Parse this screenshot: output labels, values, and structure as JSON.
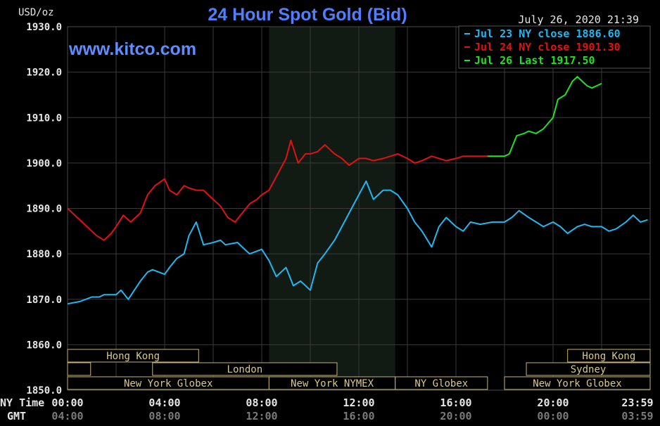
{
  "title": "24 Hour Spot Gold (Bid)",
  "watermark": "www.kitco.com",
  "datetime": "July 26, 2020 21:39",
  "units": "USD/oz",
  "row_labels": {
    "local": "NY Time",
    "gmt": "GMT"
  },
  "colors": {
    "jul23": "#1fb8f0",
    "jul24": "#e01212",
    "jul26": "#22e022",
    "grid": "#3a3a3a",
    "session_border": "#c8b46e",
    "session_text": "#d9c98a",
    "background": "#000000",
    "shade": "#121a14"
  },
  "chart_data": {
    "type": "line",
    "title": "24 Hour Spot Gold (Bid)",
    "ylabel": "USD/oz",
    "ylim": [
      1850,
      1930
    ],
    "yticks": [
      "1930.0",
      "1920.0",
      "1910.0",
      "1900.0",
      "1890.0",
      "1880.0",
      "1870.0",
      "1860.0",
      "1850.0"
    ],
    "xlim_hours": [
      0,
      24
    ],
    "xticks": [
      {
        "label": "00:00",
        "gmt": "04:00"
      },
      {
        "label": "04:00",
        "gmt": "08:00"
      },
      {
        "label": "08:00",
        "gmt": "12:00"
      },
      {
        "label": "12:00",
        "gmt": "16:00"
      },
      {
        "label": "16:00",
        "gmt": "20:00"
      },
      {
        "label": "20:00",
        "gmt": "00:00"
      },
      {
        "label": "23:59",
        "gmt": "03:59"
      }
    ],
    "grid": true,
    "legend_position": "top-right",
    "shaded_range_hours": [
      8.3,
      13.5
    ],
    "series": [
      {
        "key": "jul23",
        "name": "Jul 23 NY close 1886.60",
        "color": "#1fb8f0",
        "x": [
          0,
          0.5,
          1,
          1.3,
          1.5,
          2,
          2.2,
          2.5,
          3,
          3.3,
          3.5,
          4,
          4.2,
          4.5,
          4.8,
          5,
          5.3,
          5.6,
          6,
          6.3,
          6.5,
          7,
          7.3,
          7.5,
          8,
          8.3,
          8.6,
          9,
          9.3,
          9.6,
          10,
          10.3,
          10.6,
          11,
          11.3,
          11.6,
          12,
          12.3,
          12.6,
          13,
          13.3,
          13.6,
          14,
          14.3,
          14.6,
          15,
          15.3,
          15.6,
          16,
          16.3,
          16.6,
          17,
          17.5,
          18,
          18.3,
          18.6,
          19,
          19.3,
          19.6,
          20,
          20.3,
          20.6,
          21,
          21.3,
          21.6,
          22,
          22.3,
          22.6,
          23,
          23.3,
          23.6,
          23.9
        ],
        "y": [
          1869,
          1869.5,
          1870.5,
          1870.5,
          1871,
          1871,
          1872,
          1870,
          1874,
          1876,
          1876.5,
          1875.5,
          1877,
          1879,
          1880,
          1884,
          1887,
          1882,
          1882.5,
          1883,
          1882,
          1882.5,
          1881,
          1880,
          1881,
          1878.5,
          1875,
          1877,
          1873,
          1874,
          1872,
          1878,
          1880,
          1883,
          1886,
          1889,
          1893,
          1896,
          1892,
          1894,
          1894,
          1893,
          1890,
          1887,
          1885,
          1881.5,
          1886,
          1888,
          1886,
          1885,
          1887,
          1886.5,
          1887,
          1887,
          1888,
          1889.5,
          1888,
          1887,
          1886,
          1887,
          1886,
          1884.5,
          1886,
          1886.5,
          1886,
          1886,
          1885,
          1885.5,
          1887,
          1888.5,
          1887,
          1887.5
        ]
      },
      {
        "key": "jul24",
        "name": "Jul 24 NY close 1901.30",
        "color": "#e01212",
        "x": [
          0,
          0.4,
          0.8,
          1.2,
          1.5,
          1.8,
          2,
          2.3,
          2.6,
          3,
          3.3,
          3.6,
          4,
          4.2,
          4.5,
          4.8,
          5,
          5.3,
          5.6,
          6,
          6.3,
          6.6,
          6.9,
          7.2,
          7.5,
          7.8,
          8,
          8.3,
          8.6,
          9,
          9.2,
          9.5,
          9.8,
          10,
          10.3,
          10.6,
          11,
          11.3,
          11.6,
          12,
          12.3,
          12.6,
          13,
          13.3,
          13.6,
          14,
          14.3,
          14.6,
          15,
          15.3,
          15.6,
          16,
          16.3,
          16.6,
          17,
          17.5,
          18
        ],
        "y": [
          1890,
          1888,
          1886,
          1884,
          1883,
          1884.5,
          1886,
          1888.5,
          1887,
          1889,
          1893,
          1895,
          1896.5,
          1894,
          1893,
          1895,
          1894.5,
          1894,
          1894,
          1892,
          1890.5,
          1888,
          1887,
          1889,
          1891,
          1892,
          1893,
          1894,
          1897,
          1901,
          1905,
          1900,
          1902,
          1902,
          1902.5,
          1904,
          1902,
          1901,
          1899.5,
          1901,
          1901,
          1900.5,
          1901,
          1901.5,
          1902,
          1901,
          1900,
          1900.5,
          1901.5,
          1901,
          1900.5,
          1901,
          1901.5,
          1901.5,
          1901.5,
          1901.5,
          1901.5
        ]
      },
      {
        "key": "jul26",
        "name": "Jul 26 Last 1917.50",
        "color": "#22e022",
        "x": [
          17.3,
          18,
          18.2,
          18.5,
          18.8,
          19,
          19.3,
          19.6,
          20,
          20.2,
          20.5,
          20.8,
          21,
          21.2,
          21.4,
          21.6,
          21.8,
          22
        ],
        "y": [
          1901.5,
          1901.5,
          1902,
          1906,
          1906.5,
          1907,
          1906.5,
          1907.5,
          1910,
          1914,
          1915,
          1918,
          1919,
          1918,
          1917,
          1916.5,
          1917,
          1917.5
        ]
      }
    ]
  },
  "sessions": [
    {
      "label": "Hong Kong",
      "row": 0,
      "start": 0,
      "end": 5.4
    },
    {
      "label": "Hong Kong",
      "row": 0,
      "start": 20.6,
      "end": 24
    },
    {
      "label": "",
      "row": 1,
      "start": 0,
      "end": 0.95
    },
    {
      "label": "London",
      "row": 1,
      "start": 3.5,
      "end": 11.1
    },
    {
      "label": "Sydney",
      "row": 1,
      "start": 18.9,
      "end": 24
    },
    {
      "label": "New York Globex",
      "row": 2,
      "start": 0,
      "end": 8.3
    },
    {
      "label": "New York NYMEX",
      "row": 2,
      "start": 8.3,
      "end": 13.5
    },
    {
      "label": "NY Globex",
      "row": 2,
      "start": 13.5,
      "end": 17.3
    },
    {
      "label": "New York Globex",
      "row": 2,
      "start": 18,
      "end": 24
    }
  ]
}
